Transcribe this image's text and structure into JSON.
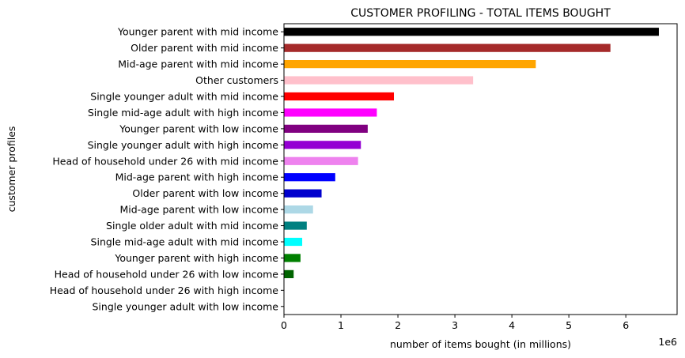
{
  "chart_data": {
    "type": "bar",
    "orientation": "horizontal",
    "title": "CUSTOMER PROFILING - TOTAL ITEMS BOUGHT",
    "xlabel": "number of items bought (in millions)",
    "ylabel": "customer profiles",
    "x_offset_label": "1e6",
    "xlim": [
      0,
      6.9
    ],
    "x_ticks": [
      0,
      1,
      2,
      3,
      4,
      5,
      6
    ],
    "grid": false,
    "categories": [
      "Younger parent with mid income",
      "Older parent with mid income",
      "Mid-age parent with mid income",
      "Other customers",
      "Single younger adult with mid income",
      "Single mid-age adult with high income",
      "Younger parent with low income",
      "Single younger adult with high income",
      "Head of household under 26 with mid income",
      "Mid-age parent with high income",
      "Older parent with low income",
      "Mid-age parent with low income",
      "Single older adult with mid income",
      "Single mid-age adult with mid income",
      "Younger parent with high income",
      "Head of household under 26 with low income",
      "Head of household under 26 with high income",
      "Single younger adult with low income"
    ],
    "values": [
      6.58,
      5.73,
      4.42,
      3.32,
      1.93,
      1.63,
      1.47,
      1.35,
      1.3,
      0.9,
      0.66,
      0.51,
      0.4,
      0.32,
      0.29,
      0.17,
      0.0,
      0.0
    ],
    "colors": [
      "#000000",
      "#a52a2a",
      "#ffa500",
      "#ffc0cb",
      "#ff0000",
      "#ff00ff",
      "#800080",
      "#9400d3",
      "#ee82ee",
      "#0000ff",
      "#0000cd",
      "#add8e6",
      "#008080",
      "#00ffff",
      "#008000",
      "#006400",
      "#006400",
      "#006400"
    ]
  }
}
